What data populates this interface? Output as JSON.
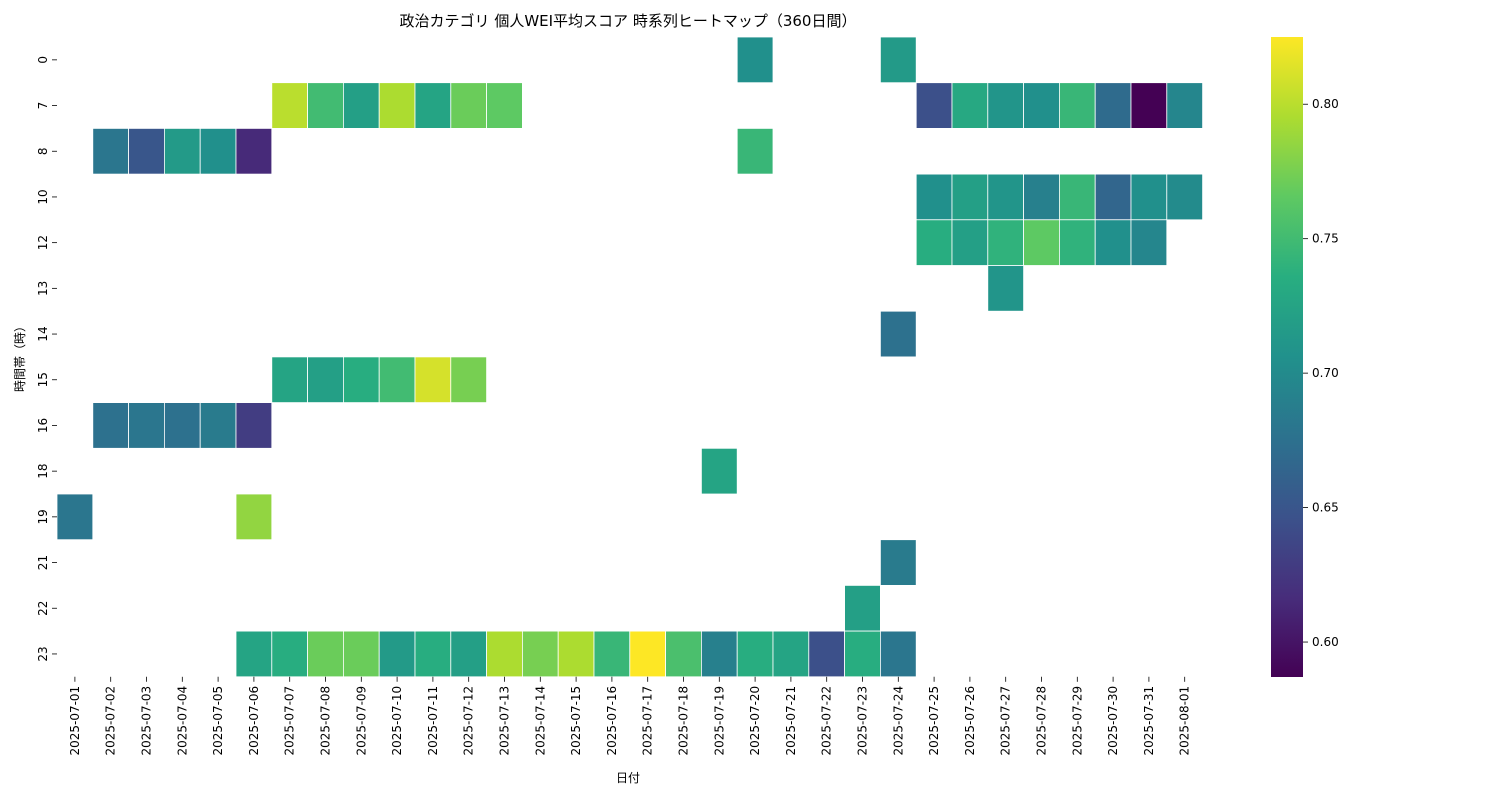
{
  "chart_data": {
    "type": "heatmap",
    "title": "政治カテゴリ 個人WEI平均スコア 時系列ヒートマップ（360日間）",
    "xlabel": "日付",
    "ylabel": "時間帯（時）",
    "colormap": "viridis",
    "colorbar": {
      "vmin": 0.587,
      "vmax": 0.825,
      "ticks": [
        "0.60",
        "0.65",
        "0.70",
        "0.75",
        "0.80"
      ],
      "tick_values": [
        0.6,
        0.65,
        0.7,
        0.75,
        0.8
      ]
    },
    "x_categories": [
      "2025-07-01",
      "2025-07-02",
      "2025-07-03",
      "2025-07-04",
      "2025-07-05",
      "2025-07-06",
      "2025-07-07",
      "2025-07-08",
      "2025-07-09",
      "2025-07-10",
      "2025-07-11",
      "2025-07-12",
      "2025-07-13",
      "2025-07-14",
      "2025-07-15",
      "2025-07-16",
      "2025-07-17",
      "2025-07-18",
      "2025-07-19",
      "2025-07-20",
      "2025-07-21",
      "2025-07-22",
      "2025-07-23",
      "2025-07-24",
      "2025-07-25",
      "2025-07-26",
      "2025-07-27",
      "2025-07-28",
      "2025-07-29",
      "2025-07-30",
      "2025-07-31",
      "2025-08-01"
    ],
    "y_categories": [
      "0",
      "7",
      "8",
      "10",
      "12",
      "13",
      "14",
      "15",
      "16",
      "18",
      "19",
      "21",
      "22",
      "23"
    ],
    "values": [
      [
        null,
        null,
        null,
        null,
        null,
        null,
        null,
        null,
        null,
        null,
        null,
        null,
        null,
        null,
        null,
        null,
        null,
        null,
        null,
        0.705,
        null,
        null,
        null,
        0.715,
        null,
        null,
        null,
        null,
        null,
        null,
        null,
        null
      ],
      [
        null,
        null,
        null,
        null,
        null,
        null,
        0.8,
        0.75,
        0.72,
        0.795,
        0.725,
        0.77,
        0.765,
        null,
        null,
        null,
        null,
        null,
        null,
        null,
        null,
        null,
        null,
        null,
        0.645,
        0.73,
        0.71,
        0.705,
        0.745,
        0.67,
        0.587,
        0.695
      ],
      [
        null,
        0.68,
        0.65,
        0.715,
        0.705,
        0.615,
        null,
        null,
        null,
        null,
        null,
        null,
        null,
        null,
        null,
        null,
        null,
        null,
        null,
        0.745,
        null,
        null,
        null,
        null,
        null,
        null,
        null,
        null,
        null,
        null,
        null,
        null
      ],
      [
        null,
        null,
        null,
        null,
        null,
        null,
        null,
        null,
        null,
        null,
        null,
        null,
        null,
        null,
        null,
        null,
        null,
        null,
        null,
        null,
        null,
        null,
        null,
        null,
        0.705,
        0.72,
        0.71,
        0.69,
        0.745,
        0.665,
        0.705,
        0.7
      ],
      [
        null,
        null,
        null,
        null,
        null,
        null,
        null,
        null,
        null,
        null,
        null,
        null,
        null,
        null,
        null,
        null,
        null,
        null,
        null,
        null,
        null,
        null,
        null,
        null,
        0.735,
        0.72,
        0.74,
        0.765,
        0.74,
        0.705,
        0.695,
        null
      ],
      [
        null,
        null,
        null,
        null,
        null,
        null,
        null,
        null,
        null,
        null,
        null,
        null,
        null,
        null,
        null,
        null,
        null,
        null,
        null,
        null,
        null,
        null,
        null,
        null,
        null,
        null,
        0.71,
        null,
        null,
        null,
        null,
        null
      ],
      [
        null,
        null,
        null,
        null,
        null,
        null,
        null,
        null,
        null,
        null,
        null,
        null,
        null,
        null,
        null,
        null,
        null,
        null,
        null,
        null,
        null,
        null,
        null,
        0.675,
        null,
        null,
        null,
        null,
        null,
        null,
        null,
        null
      ],
      [
        null,
        null,
        null,
        null,
        null,
        null,
        0.725,
        0.72,
        0.735,
        0.75,
        0.81,
        0.775,
        null,
        null,
        null,
        null,
        null,
        null,
        null,
        null,
        null,
        null,
        null,
        null,
        null,
        null,
        null,
        null,
        null,
        null,
        null,
        null
      ],
      [
        null,
        0.675,
        0.68,
        0.675,
        0.685,
        0.63,
        null,
        null,
        null,
        null,
        null,
        null,
        null,
        null,
        null,
        null,
        null,
        null,
        null,
        null,
        null,
        null,
        null,
        null,
        null,
        null,
        null,
        null,
        null,
        null,
        null,
        null
      ],
      [
        null,
        null,
        null,
        null,
        null,
        null,
        null,
        null,
        null,
        null,
        null,
        null,
        null,
        null,
        null,
        null,
        null,
        null,
        0.725,
        null,
        null,
        null,
        null,
        null,
        null,
        null,
        null,
        null,
        null,
        null,
        null,
        null
      ],
      [
        0.68,
        null,
        null,
        null,
        null,
        0.785,
        null,
        null,
        null,
        null,
        null,
        null,
        null,
        null,
        null,
        null,
        null,
        null,
        null,
        null,
        null,
        null,
        null,
        null,
        null,
        null,
        null,
        null,
        null,
        null,
        null,
        null
      ],
      [
        null,
        null,
        null,
        null,
        null,
        null,
        null,
        null,
        null,
        null,
        null,
        null,
        null,
        null,
        null,
        null,
        null,
        null,
        null,
        null,
        null,
        null,
        null,
        0.685,
        null,
        null,
        null,
        null,
        null,
        null,
        null,
        null
      ],
      [
        null,
        null,
        null,
        null,
        null,
        null,
        null,
        null,
        null,
        null,
        null,
        null,
        null,
        null,
        null,
        null,
        null,
        null,
        null,
        null,
        null,
        null,
        0.72,
        null,
        null,
        null,
        null,
        null,
        null,
        null,
        null,
        null
      ],
      [
        null,
        null,
        null,
        null,
        null,
        0.725,
        0.735,
        0.77,
        0.77,
        0.715,
        0.735,
        0.72,
        0.795,
        0.775,
        0.795,
        0.745,
        0.825,
        0.755,
        0.69,
        0.735,
        0.725,
        0.645,
        0.735,
        0.68,
        null,
        null,
        null,
        null,
        null,
        null,
        null,
        null
      ]
    ]
  }
}
